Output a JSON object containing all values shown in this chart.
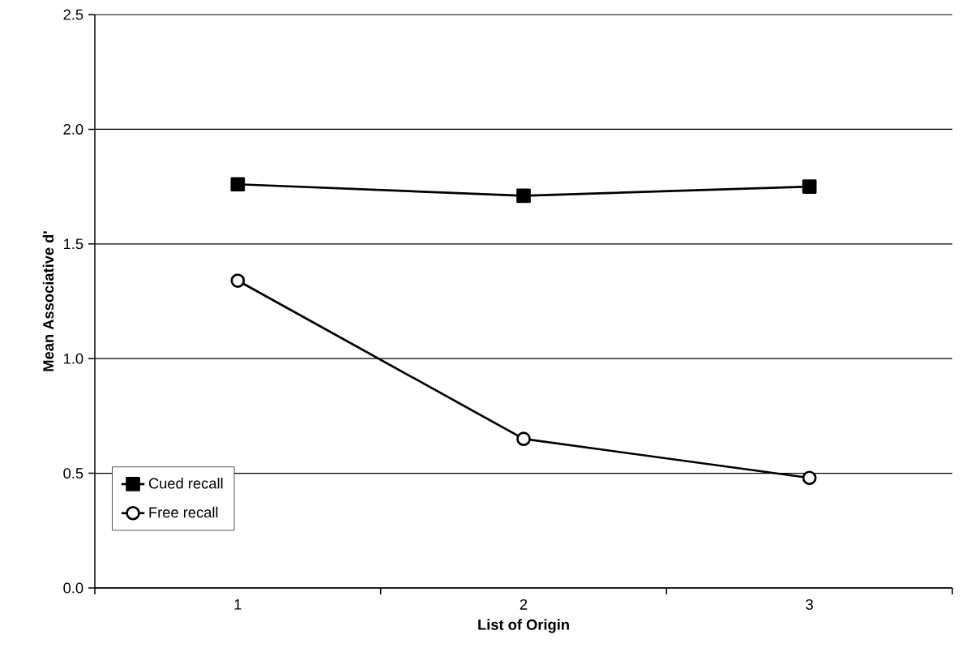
{
  "chart_data": {
    "type": "line",
    "xlabel": "List of Origin",
    "ylabel": "Mean Associative d'",
    "categories": [
      "1",
      "2",
      "3"
    ],
    "series": [
      {
        "name": "Cued recall",
        "color": "#000000",
        "marker": "square",
        "values": [
          1.76,
          1.71,
          1.75
        ]
      },
      {
        "name": "Free recall",
        "color": "#000000",
        "marker": "circle",
        "values": [
          1.34,
          0.65,
          0.48
        ]
      }
    ],
    "ylim": [
      0,
      2.5
    ],
    "yticks": [
      {
        "value": 0,
        "label": "0.0"
      },
      {
        "value": 0.5,
        "label": "0.5"
      },
      {
        "value": 1,
        "label": "1.0"
      },
      {
        "value": 1.5,
        "label": "1.5"
      },
      {
        "value": 2,
        "label": "2.0"
      },
      {
        "value": 2.5,
        "label": "2.5"
      }
    ],
    "grid": "y",
    "legend": "bottom left",
    "line_style": "solid"
  }
}
